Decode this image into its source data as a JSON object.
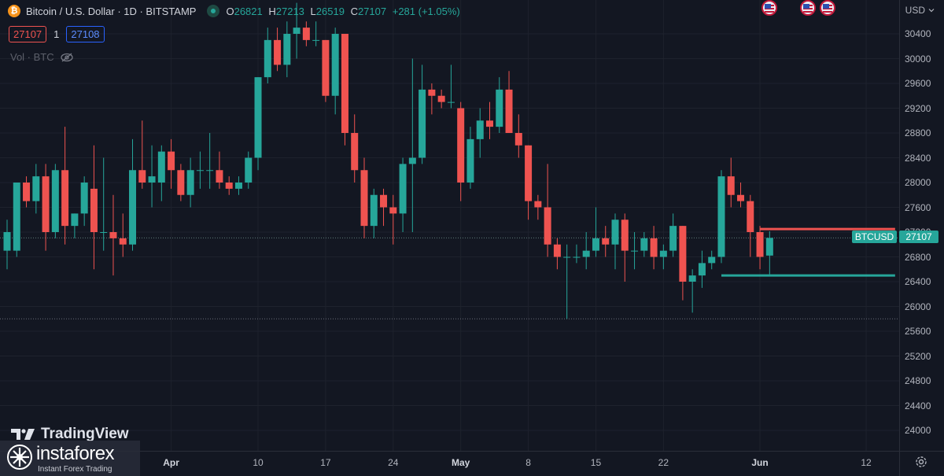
{
  "header": {
    "symbol_icon": "bitcoin-icon",
    "title": "Bitcoin / U.S. Dollar · 1D · BITSTAMP",
    "open_label": "O",
    "open": "26821",
    "high_label": "H",
    "high": "27213",
    "low_label": "L",
    "low": "26519",
    "close_label": "C",
    "close": "27107",
    "change": "+281 (+1.05%)"
  },
  "trade": {
    "sell_price": "27107",
    "quantity": "1",
    "buy_price": "27108"
  },
  "volume_label": "Vol · BTC",
  "currency": "USD",
  "price_tag": {
    "symbol": "BTCUSD",
    "price": "27107"
  },
  "branding": {
    "tradingview": "TradingView",
    "insta_name": "instaforex",
    "insta_tagline": "Instant Forex Trading"
  },
  "colors": {
    "up": "#26a69a",
    "down": "#ef5350",
    "background": "#131722",
    "grid": "#1e222d"
  },
  "chart_data": {
    "type": "candlestick",
    "title": "Bitcoin / U.S. Dollar · 1D · BITSTAMP",
    "ylim": [
      23800,
      30700
    ],
    "y_ticks": [
      30400,
      30000,
      29600,
      29200,
      28800,
      28400,
      28000,
      27600,
      27200,
      26800,
      26400,
      26000,
      25600,
      25200,
      24800,
      24400,
      24000
    ],
    "x_ticks": [
      {
        "label": "Apr",
        "date": "2023-04-01",
        "bold": true
      },
      {
        "label": "10",
        "date": "2023-04-10",
        "bold": false
      },
      {
        "label": "17",
        "date": "2023-04-17",
        "bold": false
      },
      {
        "label": "24",
        "date": "2023-04-24",
        "bold": false
      },
      {
        "label": "May",
        "date": "2023-05-01",
        "bold": true
      },
      {
        "label": "8",
        "date": "2023-05-08",
        "bold": false
      },
      {
        "label": "15",
        "date": "2023-05-15",
        "bold": false
      },
      {
        "label": "22",
        "date": "2023-05-22",
        "bold": false
      },
      {
        "label": "Jun",
        "date": "2023-06-01",
        "bold": true
      },
      {
        "label": "12",
        "date": "2023-06-12",
        "bold": false
      }
    ],
    "candles": [
      {
        "date": "2023-03-15",
        "o": 26900,
        "h": 27400,
        "l": 26600,
        "c": 27200
      },
      {
        "date": "2023-03-16",
        "o": 26900,
        "h": 28000,
        "l": 26800,
        "c": 28000
      },
      {
        "date": "2023-03-17",
        "o": 28000,
        "h": 28100,
        "l": 27600,
        "c": 27700
      },
      {
        "date": "2023-03-18",
        "o": 27700,
        "h": 28300,
        "l": 27500,
        "c": 28100
      },
      {
        "date": "2023-03-19",
        "o": 28100,
        "h": 28300,
        "l": 26900,
        "c": 27200
      },
      {
        "date": "2023-03-20",
        "o": 27200,
        "h": 28300,
        "l": 27100,
        "c": 28200
      },
      {
        "date": "2023-03-21",
        "o": 28200,
        "h": 28900,
        "l": 27000,
        "c": 27300
      },
      {
        "date": "2023-03-22",
        "o": 27300,
        "h": 27500,
        "l": 27100,
        "c": 27500
      },
      {
        "date": "2023-03-23",
        "o": 27500,
        "h": 28100,
        "l": 27300,
        "c": 28000
      },
      {
        "date": "2023-03-24",
        "o": 27900,
        "h": 28600,
        "l": 26600,
        "c": 27200
      },
      {
        "date": "2023-03-25",
        "o": 27200,
        "h": 28400,
        "l": 26900,
        "c": 27200
      },
      {
        "date": "2023-03-26",
        "o": 27200,
        "h": 27800,
        "l": 26500,
        "c": 27100
      },
      {
        "date": "2023-03-27",
        "o": 27100,
        "h": 27500,
        "l": 26800,
        "c": 27000
      },
      {
        "date": "2023-03-28",
        "o": 27000,
        "h": 28700,
        "l": 26900,
        "c": 28200
      },
      {
        "date": "2023-03-29",
        "o": 28200,
        "h": 29000,
        "l": 27900,
        "c": 28000
      },
      {
        "date": "2023-03-30",
        "o": 28000,
        "h": 28600,
        "l": 27600,
        "c": 28100
      },
      {
        "date": "2023-03-31",
        "o": 28000,
        "h": 28600,
        "l": 27700,
        "c": 28500
      },
      {
        "date": "2023-04-01",
        "o": 28500,
        "h": 28700,
        "l": 27900,
        "c": 28200
      },
      {
        "date": "2023-04-02",
        "o": 28200,
        "h": 28300,
        "l": 27700,
        "c": 27800
      },
      {
        "date": "2023-04-03",
        "o": 27800,
        "h": 28400,
        "l": 27600,
        "c": 28200
      },
      {
        "date": "2023-04-04",
        "o": 28200,
        "h": 28500,
        "l": 27900,
        "c": 28200
      },
      {
        "date": "2023-04-05",
        "o": 28200,
        "h": 28800,
        "l": 27900,
        "c": 28200
      },
      {
        "date": "2023-04-06",
        "o": 28200,
        "h": 28500,
        "l": 27900,
        "c": 28000
      },
      {
        "date": "2023-04-07",
        "o": 28000,
        "h": 28100,
        "l": 27800,
        "c": 27900
      },
      {
        "date": "2023-04-08",
        "o": 27900,
        "h": 28100,
        "l": 27800,
        "c": 28000
      },
      {
        "date": "2023-04-09",
        "o": 28000,
        "h": 28500,
        "l": 27900,
        "c": 28400
      },
      {
        "date": "2023-04-10",
        "o": 28400,
        "h": 29700,
        "l": 28200,
        "c": 29700
      },
      {
        "date": "2023-04-11",
        "o": 29700,
        "h": 30500,
        "l": 29600,
        "c": 30300
      },
      {
        "date": "2023-04-12",
        "o": 30300,
        "h": 30500,
        "l": 29800,
        "c": 29900
      },
      {
        "date": "2023-04-13",
        "o": 29900,
        "h": 30600,
        "l": 29700,
        "c": 30400
      },
      {
        "date": "2023-04-14",
        "o": 30400,
        "h": 30900,
        "l": 30000,
        "c": 30500
      },
      {
        "date": "2023-04-15",
        "o": 30500,
        "h": 30600,
        "l": 30200,
        "c": 30300
      },
      {
        "date": "2023-04-16",
        "o": 30300,
        "h": 30600,
        "l": 30200,
        "c": 30300
      },
      {
        "date": "2023-04-17",
        "o": 30300,
        "h": 30300,
        "l": 29300,
        "c": 29400
      },
      {
        "date": "2023-04-18",
        "o": 29400,
        "h": 30500,
        "l": 29100,
        "c": 30400
      },
      {
        "date": "2023-04-19",
        "o": 30400,
        "h": 30400,
        "l": 28600,
        "c": 28800
      },
      {
        "date": "2023-04-20",
        "o": 28800,
        "h": 29100,
        "l": 28000,
        "c": 28200
      },
      {
        "date": "2023-04-21",
        "o": 28200,
        "h": 28400,
        "l": 27100,
        "c": 27300
      },
      {
        "date": "2023-04-22",
        "o": 27300,
        "h": 27900,
        "l": 27100,
        "c": 27800
      },
      {
        "date": "2023-04-23",
        "o": 27800,
        "h": 27900,
        "l": 27300,
        "c": 27600
      },
      {
        "date": "2023-04-24",
        "o": 27600,
        "h": 27800,
        "l": 27000,
        "c": 27500
      },
      {
        "date": "2023-04-25",
        "o": 27500,
        "h": 28400,
        "l": 27200,
        "c": 28300
      },
      {
        "date": "2023-04-26",
        "o": 28300,
        "h": 30000,
        "l": 27200,
        "c": 28400
      },
      {
        "date": "2023-04-27",
        "o": 28400,
        "h": 29900,
        "l": 28300,
        "c": 29500
      },
      {
        "date": "2023-04-28",
        "o": 29500,
        "h": 29600,
        "l": 29100,
        "c": 29400
      },
      {
        "date": "2023-04-29",
        "o": 29400,
        "h": 29500,
        "l": 29200,
        "c": 29300
      },
      {
        "date": "2023-04-30",
        "o": 29300,
        "h": 29900,
        "l": 29200,
        "c": 29300
      },
      {
        "date": "2023-05-01",
        "o": 29200,
        "h": 29300,
        "l": 27700,
        "c": 28000
      },
      {
        "date": "2023-05-02",
        "o": 28000,
        "h": 28900,
        "l": 27900,
        "c": 28700
      },
      {
        "date": "2023-05-03",
        "o": 28700,
        "h": 29200,
        "l": 28400,
        "c": 29000
      },
      {
        "date": "2023-05-04",
        "o": 29000,
        "h": 29300,
        "l": 28700,
        "c": 28900
      },
      {
        "date": "2023-05-05",
        "o": 28900,
        "h": 29700,
        "l": 28800,
        "c": 29500
      },
      {
        "date": "2023-05-06",
        "o": 29500,
        "h": 29800,
        "l": 28800,
        "c": 28800
      },
      {
        "date": "2023-05-07",
        "o": 28800,
        "h": 29100,
        "l": 28400,
        "c": 28600
      },
      {
        "date": "2023-05-08",
        "o": 28600,
        "h": 28600,
        "l": 27400,
        "c": 27700
      },
      {
        "date": "2023-05-09",
        "o": 27700,
        "h": 27800,
        "l": 27400,
        "c": 27600
      },
      {
        "date": "2023-05-10",
        "o": 27600,
        "h": 28300,
        "l": 26800,
        "c": 27000
      },
      {
        "date": "2023-05-11",
        "o": 27000,
        "h": 27100,
        "l": 26600,
        "c": 26800
      },
      {
        "date": "2023-05-12",
        "o": 26800,
        "h": 27000,
        "l": 25800,
        "c": 26800
      },
      {
        "date": "2023-05-13",
        "o": 26800,
        "h": 27000,
        "l": 26700,
        "c": 26800
      },
      {
        "date": "2023-05-14",
        "o": 26800,
        "h": 27200,
        "l": 26600,
        "c": 26900
      },
      {
        "date": "2023-05-15",
        "o": 26900,
        "h": 27600,
        "l": 26800,
        "c": 27100
      },
      {
        "date": "2023-05-16",
        "o": 27100,
        "h": 27300,
        "l": 26800,
        "c": 27000
      },
      {
        "date": "2023-05-17",
        "o": 27000,
        "h": 27500,
        "l": 26600,
        "c": 27400
      },
      {
        "date": "2023-05-18",
        "o": 27400,
        "h": 27500,
        "l": 26400,
        "c": 26900
      },
      {
        "date": "2023-05-19",
        "o": 26900,
        "h": 27200,
        "l": 26600,
        "c": 26900
      },
      {
        "date": "2023-05-20",
        "o": 26900,
        "h": 27200,
        "l": 26800,
        "c": 27100
      },
      {
        "date": "2023-05-21",
        "o": 27100,
        "h": 27300,
        "l": 26600,
        "c": 26800
      },
      {
        "date": "2023-05-22",
        "o": 26800,
        "h": 27000,
        "l": 26600,
        "c": 26900
      },
      {
        "date": "2023-05-23",
        "o": 26900,
        "h": 27500,
        "l": 26800,
        "c": 27300
      },
      {
        "date": "2023-05-24",
        "o": 27300,
        "h": 27300,
        "l": 26100,
        "c": 26400
      },
      {
        "date": "2023-05-25",
        "o": 26400,
        "h": 26600,
        "l": 25900,
        "c": 26500
      },
      {
        "date": "2023-05-26",
        "o": 26500,
        "h": 26900,
        "l": 26300,
        "c": 26700
      },
      {
        "date": "2023-05-27",
        "o": 26700,
        "h": 26900,
        "l": 26600,
        "c": 26800
      },
      {
        "date": "2023-05-28",
        "o": 26800,
        "h": 28200,
        "l": 26700,
        "c": 28100
      },
      {
        "date": "2023-05-29",
        "o": 28100,
        "h": 28400,
        "l": 27600,
        "c": 27800
      },
      {
        "date": "2023-05-30",
        "o": 27800,
        "h": 28000,
        "l": 27600,
        "c": 27700
      },
      {
        "date": "2023-05-31",
        "o": 27700,
        "h": 27800,
        "l": 26800,
        "c": 27200
      },
      {
        "date": "2023-06-01",
        "o": 27200,
        "h": 27300,
        "l": 26600,
        "c": 26800
      },
      {
        "date": "2023-06-02",
        "o": 26821,
        "h": 27213,
        "l": 26519,
        "c": 27107
      }
    ],
    "levels": [
      {
        "name": "resistance",
        "price": 27250,
        "color": "#ef5350",
        "from": "2023-06-01",
        "to": "2023-06-15"
      },
      {
        "name": "support",
        "price": 26500,
        "color": "#26a69a",
        "from": "2023-05-28",
        "to": "2023-06-15"
      }
    ],
    "current_price": 27107,
    "dotted_level": 25800,
    "event_dates": [
      "2023-06-02",
      "2023-06-06",
      "2023-06-08"
    ]
  }
}
